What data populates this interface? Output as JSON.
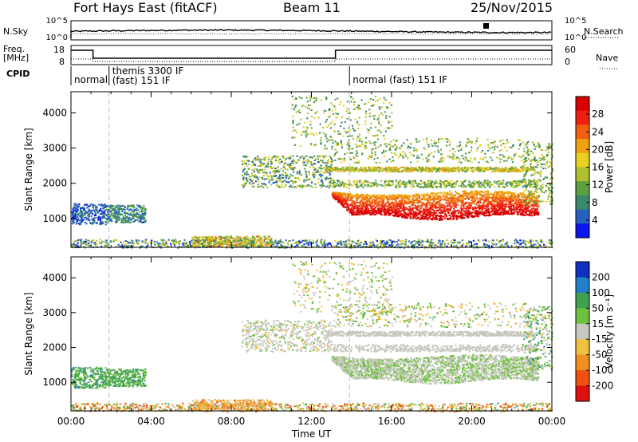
{
  "header": {
    "title": "Fort Hays East (fitACF)",
    "beam": "Beam 11",
    "date": "25/Nov/2015"
  },
  "top_panels": {
    "nsky_label": "N.Sky",
    "nsearch_label": "N.Search",
    "nsky_ticks": [
      "10^5",
      "10^0"
    ],
    "nsearch_ticks": [
      "10^5",
      "10^0"
    ],
    "freq_label": "Freq.",
    "freq_unit": "[MHz]",
    "freq_ticks": [
      "18",
      "8"
    ],
    "nave_label": "Nave",
    "nave_ticks": [
      "60",
      "0"
    ],
    "cpid_label": "CPID",
    "cpid_segments": [
      {
        "start_hour": 0.0,
        "lines": [
          "normal"
        ]
      },
      {
        "start_hour": 1.9,
        "lines": [
          "themis 3300 IF",
          "(fast) 151 IF"
        ]
      },
      {
        "start_hour": 13.9,
        "lines": [
          "normal (fast) 151 IF"
        ]
      }
    ]
  },
  "chart_data": [
    {
      "type": "heatmap",
      "name": "power",
      "xlabel": "",
      "ylabel": "Slant Range [km]",
      "xlim": [
        0,
        24
      ],
      "ylim": [
        180,
        4600
      ],
      "yticks": [
        1000,
        2000,
        3000,
        4000
      ],
      "colorbar": {
        "label": "Power [dB]",
        "ticks": [
          4,
          8,
          12,
          16,
          20,
          24,
          28
        ],
        "range": [
          0,
          32
        ],
        "colors": [
          "#0a14f0",
          "#2860c0",
          "#3a8a68",
          "#5aa040",
          "#b0c030",
          "#e8d020",
          "#f0a010",
          "#f06010",
          "#f02010",
          "#d80000"
        ]
      }
    },
    {
      "type": "heatmap",
      "name": "velocity",
      "xlabel": "Time UT",
      "ylabel": "Slant Range [km]",
      "xlim": [
        0,
        24
      ],
      "ylim": [
        180,
        4600
      ],
      "yticks": [
        1000,
        2000,
        3000,
        4000
      ],
      "xticks": [
        "00:00",
        "04:00",
        "08:00",
        "12:00",
        "16:00",
        "20:00",
        "00:00"
      ],
      "colorbar": {
        "label": "Velocity [m s^-1]",
        "ticks": [
          "200",
          "100",
          "50",
          "15",
          "-15",
          "-50",
          "-100",
          "-200"
        ],
        "colors": [
          "#1030c0",
          "#2080c8",
          "#40a050",
          "#70c040",
          "#c8c8c0",
          "#f0c040",
          "#f09020",
          "#f05010",
          "#e01010"
        ]
      }
    }
  ]
}
